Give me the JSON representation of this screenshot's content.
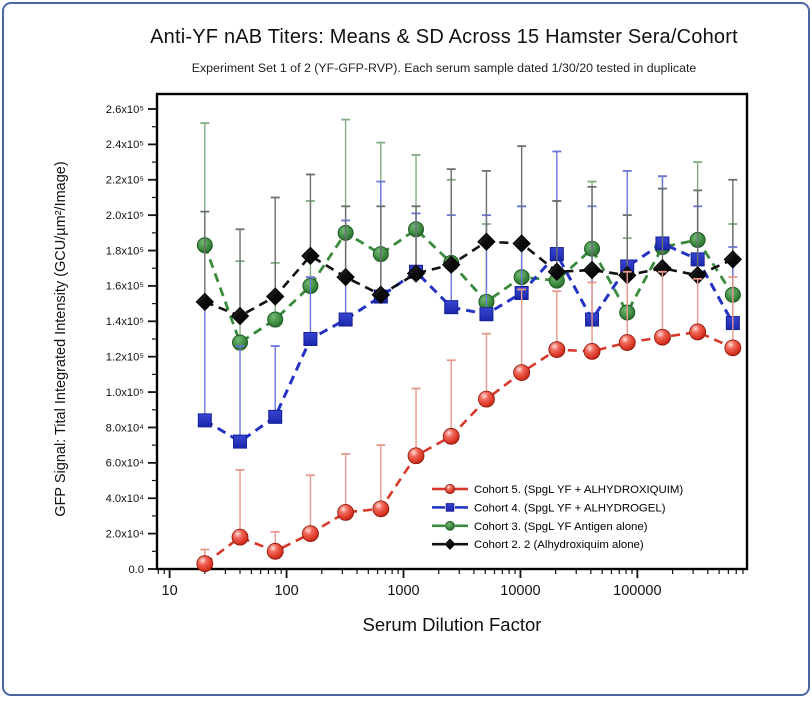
{
  "frame": {
    "border_color": "#4d67a5",
    "background": "#ffffff"
  },
  "chart_data": {
    "type": "line",
    "title": "Anti-YF nAB Titers: Means & SD Across 15 Hamster Sera/Cohort",
    "subtitle": "Experiment Set 1 of 2 (YF-GFP-RVP). Each serum sample dated 1/30/20 tested in duplicate",
    "xlabel": "Serum Dilution Factor",
    "ylabel": "GFP Signal: Tital Integrated Intensity (GCU/µm²/Image)",
    "x_scale": "log",
    "grid": false,
    "legend_position": "lower-right",
    "x_range": [
      7.8,
      866000
    ],
    "y_range": [
      0,
      260000
    ],
    "x_ticks": [
      {
        "v": 10,
        "label": "10"
      },
      {
        "v": 100,
        "label": "100"
      },
      {
        "v": 1000,
        "label": "1000"
      },
      {
        "v": 10000,
        "label": "10000"
      },
      {
        "v": 100000,
        "label": "100000"
      }
    ],
    "y_ticks": [
      {
        "v": 0,
        "label": "0.0"
      },
      {
        "v": 20000,
        "label": "2.0x10⁴"
      },
      {
        "v": 40000,
        "label": "4.0x10⁴"
      },
      {
        "v": 60000,
        "label": "6.0x10⁴"
      },
      {
        "v": 80000,
        "label": "8.0x10⁴"
      },
      {
        "v": 100000,
        "label": "1.0x10⁵"
      },
      {
        "v": 120000,
        "label": "1.2x10⁵"
      },
      {
        "v": 140000,
        "label": "1.4x10⁵"
      },
      {
        "v": 160000,
        "label": "1.6x10⁵"
      },
      {
        "v": 180000,
        "label": "1.8x10⁵"
      },
      {
        "v": 200000,
        "label": "2.0x10⁵"
      },
      {
        "v": 220000,
        "label": "2.2x10⁵"
      },
      {
        "v": 240000,
        "label": "2.4x10⁵"
      },
      {
        "v": 260000,
        "label": "2.6x10⁵"
      }
    ],
    "x": [
      20,
      40,
      80,
      160,
      320,
      640,
      1280,
      2560,
      5120,
      10240,
      20480,
      40960,
      81920,
      163840,
      327680,
      655360
    ],
    "series": [
      {
        "name": "Cohort 5. (SpgL YF + ALHYDROXIQUIM)",
        "marker": "sphere",
        "color": "#d6392b",
        "error_color": "#e8988c",
        "values": [
          3000,
          18000,
          10000,
          20000,
          32000,
          34000,
          64000,
          75000,
          96000,
          111000,
          124000,
          123000,
          128000,
          131000,
          134000,
          125000
        ],
        "sd": [
          8000,
          38000,
          11000,
          33000,
          33000,
          36000,
          38000,
          43000,
          37000,
          47000,
          33000,
          39000,
          40000,
          37000,
          30000,
          40000
        ]
      },
      {
        "name": "Cohort 4. (SpgL YF + ALHYDROGEL)",
        "marker": "square",
        "color": "#2433c4",
        "error_color": "#6b76d8",
        "values": [
          84000,
          72000,
          86000,
          130000,
          141000,
          154000,
          168000,
          148000,
          144000,
          156000,
          178000,
          141000,
          171000,
          184000,
          175000,
          139000
        ],
        "sd": [
          65000,
          54000,
          40000,
          35000,
          56000,
          65000,
          33000,
          52000,
          56000,
          49000,
          58000,
          64000,
          54000,
          38000,
          30000,
          43000
        ]
      },
      {
        "name": "Cohort 3. (SpgL YF Antigen alone)",
        "marker": "circle",
        "color": "#3a8a3c",
        "error_color": "#7fae80",
        "values": [
          183000,
          128000,
          141000,
          160000,
          190000,
          178000,
          192000,
          173000,
          151000,
          165000,
          163000,
          181000,
          145000,
          182000,
          186000,
          155000
        ],
        "sd": [
          69000,
          46000,
          32000,
          48000,
          64000,
          63000,
          42000,
          47000,
          44000,
          40000,
          45000,
          38000,
          42000,
          40000,
          44000,
          40000
        ]
      },
      {
        "name": "Cohort 2. 2 (Alhydroxiquim alone)",
        "marker": "diamond",
        "color": "#111111",
        "error_color": "#6e6e6e",
        "values": [
          151000,
          143000,
          154000,
          177000,
          165000,
          155000,
          167000,
          172000,
          185000,
          184000,
          168000,
          169000,
          166000,
          170000,
          166000,
          175000
        ],
        "sd": [
          51000,
          49000,
          56000,
          46000,
          40000,
          50000,
          38000,
          54000,
          40000,
          55000,
          40000,
          47000,
          34000,
          45000,
          48000,
          45000
        ]
      }
    ]
  }
}
